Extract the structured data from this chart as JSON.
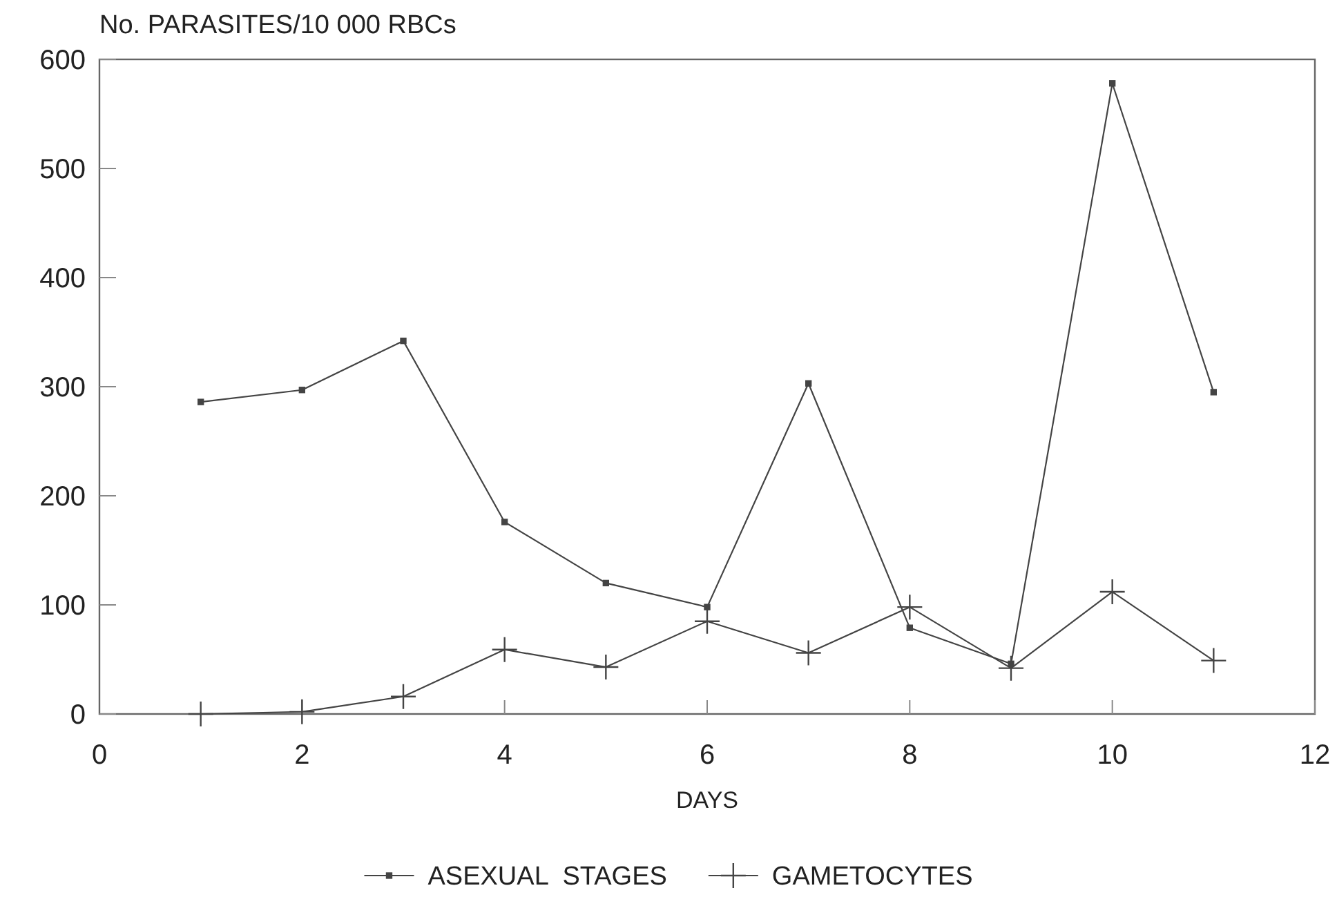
{
  "chart_data": {
    "type": "line",
    "ylabel": "No. PARASITES/10 000 RBCs",
    "xlabel": "DAYS",
    "x": [
      1,
      2,
      3,
      4,
      5,
      6,
      7,
      8,
      9,
      10,
      11
    ],
    "xlim": [
      0,
      12
    ],
    "xticks": [
      0,
      2,
      4,
      6,
      8,
      10,
      12
    ],
    "ylim": [
      0,
      600
    ],
    "yticks": [
      0,
      100,
      200,
      300,
      400,
      500,
      600
    ],
    "grid": false,
    "legend": "bottom",
    "series": [
      {
        "name": "ASEXUAL  STAGES",
        "color": "#444444",
        "marker": "square",
        "values": [
          286,
          297,
          342,
          176,
          120,
          98,
          303,
          79,
          46,
          578,
          295
        ]
      },
      {
        "name": "GAMETOCYTES",
        "color": "#444444",
        "marker": "cross",
        "values": [
          0,
          2,
          16,
          59,
          43,
          85,
          56,
          98,
          42,
          112,
          49
        ]
      }
    ]
  }
}
